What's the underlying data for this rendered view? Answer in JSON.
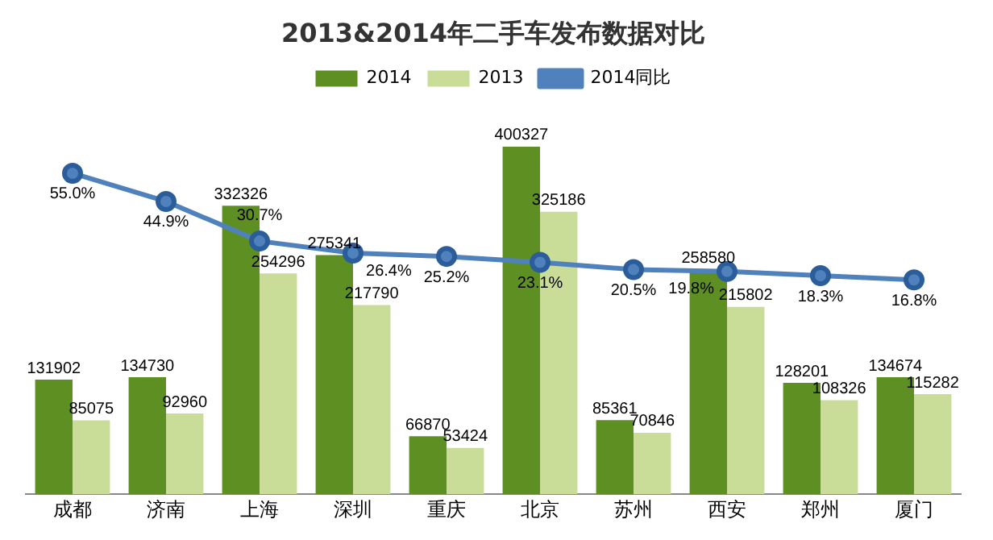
{
  "chart_data": {
    "type": "bar",
    "title": "2013&2014年二手车发布数据对比",
    "categories": [
      "成都",
      "济南",
      "上海",
      "深圳",
      "重庆",
      "北京",
      "苏州",
      "西安",
      "郑州",
      "厦门"
    ],
    "series": [
      {
        "name": "2014",
        "color": "#5e8f23",
        "values": [
          131902,
          134730,
          332326,
          275341,
          66870,
          400327,
          85361,
          258580,
          128201,
          134674
        ]
      },
      {
        "name": "2013",
        "color": "#c9dd98",
        "values": [
          85075,
          92960,
          254296,
          217790,
          53424,
          325186,
          70846,
          215802,
          108326,
          115282
        ]
      },
      {
        "name": "2014同比",
        "type": "line",
        "axis": "y2",
        "color": "#4f81bd",
        "marker": "circle",
        "values": [
          55.0,
          44.9,
          30.7,
          26.4,
          25.2,
          23.1,
          20.5,
          19.8,
          18.3,
          16.8
        ],
        "value_labels": [
          "55.0%",
          "44.9%",
          "30.7%",
          "26.4%",
          "25.2%",
          "23.1%",
          "20.5%",
          "19.8%",
          "18.3%",
          "16.8%"
        ]
      }
    ],
    "data_labels": true,
    "legend": "top",
    "grid": false,
    "tick_labels": "x"
  }
}
